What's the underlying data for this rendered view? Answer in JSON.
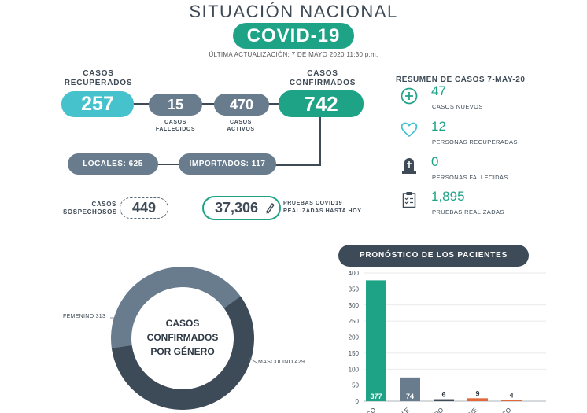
{
  "header": {
    "title": "SITUACIÓN NACIONAL",
    "badge": "COVID-19",
    "update": "ÚLTIMA ACTUALIZACIÓN: 7 DE MAYO 2020 11:30 p.m."
  },
  "cases": {
    "recovered_label": "CASOS RECUPERADOS",
    "recovered": "257",
    "deaths": "15",
    "deaths_label": "CASOS FALLECIDOS",
    "active": "470",
    "active_label": "CASOS ACTIVOS",
    "confirmed_label": "CASOS CONFIRMADOS",
    "confirmed": "742",
    "local": "LOCALES: 625",
    "imported": "IMPORTADOS: 117",
    "suspected_label": "CASOS SOSPECHOSOS",
    "suspected": "449",
    "tests": "37,306",
    "tests_label": "PRUEBAS COVID19 REALIZADAS HASTA HOY"
  },
  "summary": {
    "title": "RESUMEN DE CASOS 7-MAY-20",
    "items": [
      {
        "icon": "plus-circle-icon",
        "value": "47",
        "label": "CASOS NUEVOS"
      },
      {
        "icon": "heart-icon",
        "value": "12",
        "label": "PERSONAS RECUPERADAS"
      },
      {
        "icon": "tombstone-icon",
        "value": "0",
        "label": "PERSONAS FALLECIDAS"
      },
      {
        "icon": "clipboard-icon",
        "value": "1,895",
        "label": "PRUEBAS REALIZADAS"
      }
    ]
  },
  "colors": {
    "green": "#1fa387",
    "teal_light": "#45c2cb",
    "slate": "#687c8e",
    "dark": "#3d4b58",
    "orange": "#e0683a"
  },
  "chart_data": [
    {
      "type": "pie",
      "title": "CASOS CONFIRMADOS POR GÉNERO",
      "labels": [
        "FEMENINO 313",
        "MASCULINO 429"
      ],
      "values": [
        313,
        429
      ],
      "colors": [
        "#687c8e",
        "#3d4b58"
      ]
    },
    {
      "type": "bar",
      "title": "PRONÓSTICO DE LOS PACIENTES",
      "categories": [
        "…CO",
        "…BLE",
        "…DO",
        "…AVE",
        "…ICO"
      ],
      "values": [
        377,
        74,
        6,
        9,
        4
      ],
      "value_labels": [
        "377",
        "74",
        "6",
        "9",
        "4"
      ],
      "colors": [
        "#1fa387",
        "#687c8e",
        "#3d4b58",
        "#e0683a",
        "#e0683a"
      ],
      "ylim": [
        0,
        400
      ],
      "yticks": [
        "0",
        "50",
        "100",
        "150",
        "200",
        "250",
        "300",
        "350",
        "400"
      ],
      "grid": true
    }
  ]
}
